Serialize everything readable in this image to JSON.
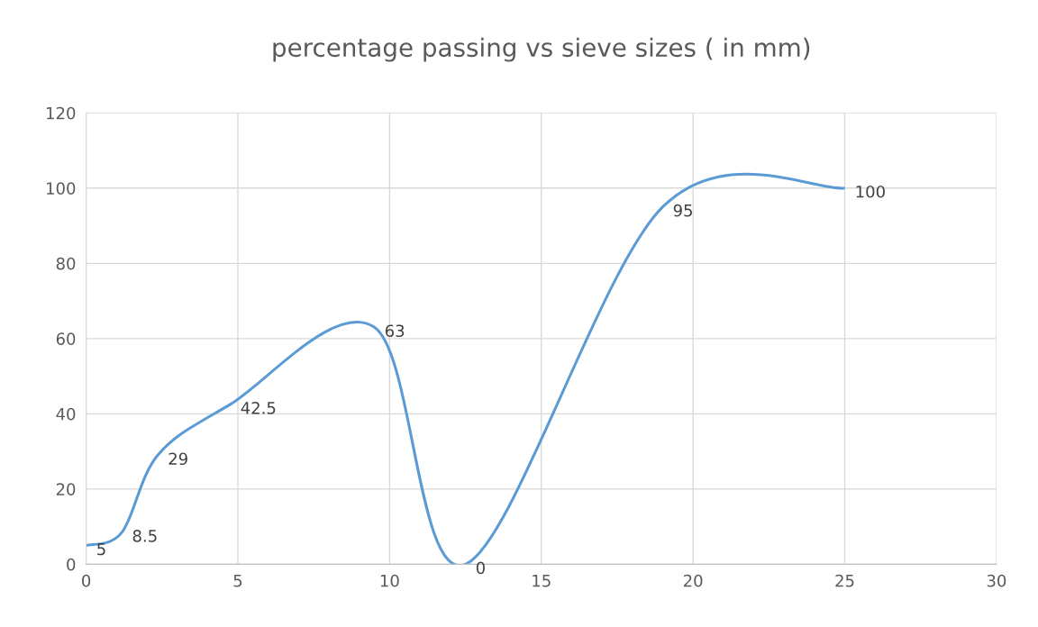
{
  "chart_data": {
    "type": "line",
    "title": "percentage passing vs sieve sizes ( in mm)",
    "x": [
      0,
      1.18,
      2.36,
      4.75,
      9.5,
      12.5,
      19,
      25
    ],
    "series": [
      {
        "color": "#5b9bd5",
        "values": [
          5,
          8.5,
          29,
          42.5,
          63,
          0,
          95,
          100
        ]
      }
    ],
    "xlim": [
      0,
      30
    ],
    "xticks": [
      0,
      5,
      10,
      15,
      20,
      25,
      30
    ],
    "ylim": [
      0,
      120
    ],
    "yticks": [
      0,
      20,
      40,
      60,
      80,
      100,
      120
    ],
    "grid": true,
    "data_labels": true,
    "marker": "none",
    "line_style": "solid"
  }
}
